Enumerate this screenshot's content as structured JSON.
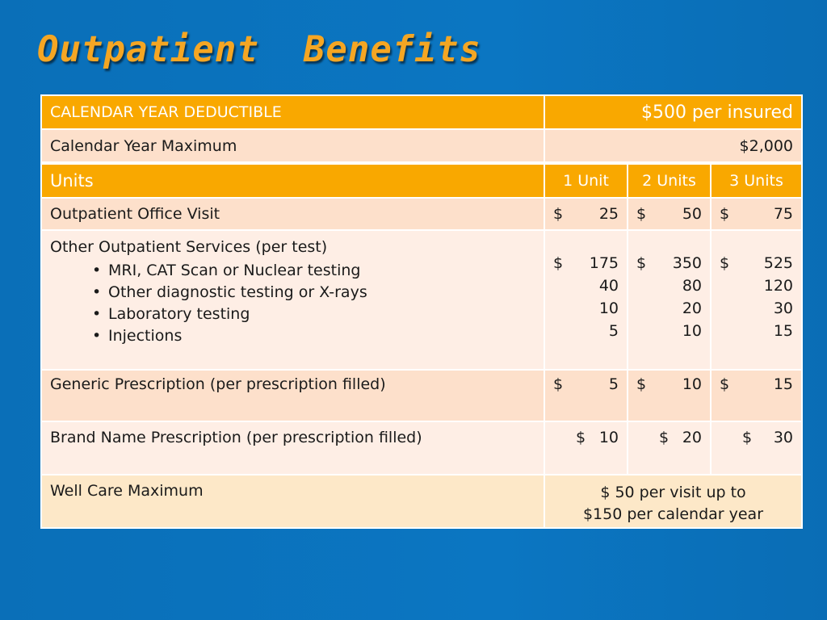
{
  "title": "Outpatient  Benefits",
  "deductible": {
    "label": "CALENDAR YEAR DEDUCTIBLE",
    "value": "$500 per insured"
  },
  "maximum": {
    "label": "Calendar Year Maximum",
    "value": "$2,000"
  },
  "units_header": {
    "label": "Units",
    "col1": "1 Unit",
    "col2": "2 Units",
    "col3": "3 Units"
  },
  "office_visit": {
    "label": "Outpatient Office Visit",
    "col1": "25",
    "col2": "50",
    "col3": "75"
  },
  "other_services": {
    "label": "Other Outpatient Services (per test)",
    "bullets": [
      "MRI, CAT Scan or Nuclear testing",
      "Other diagnostic testing or X-rays",
      "Laboratory testing",
      "Injections"
    ],
    "col1": [
      "175",
      "40",
      "10",
      "5"
    ],
    "col2": [
      "350",
      "80",
      "20",
      "10"
    ],
    "col3": [
      "525",
      "120",
      "30",
      "15"
    ]
  },
  "generic_rx": {
    "label": "Generic Prescription (per prescription filled)",
    "col1": "5",
    "col2": "10",
    "col3": "15"
  },
  "brand_rx": {
    "label": "Brand Name Prescription (per prescription filled)",
    "col1": "10",
    "col2": "20",
    "col3": "30"
  },
  "well_care": {
    "label": "Well Care Maximum",
    "line1": "$ 50 per visit up to",
    "line2": "$150 per calendar year"
  },
  "currency_symbol": "$",
  "colors": {
    "background": "#0b76c2",
    "header": "#f9a800",
    "title": "#f5a623",
    "row_peach": "#fde0cb",
    "row_light": "#feeee5",
    "row_cream": "#fde8c8"
  }
}
